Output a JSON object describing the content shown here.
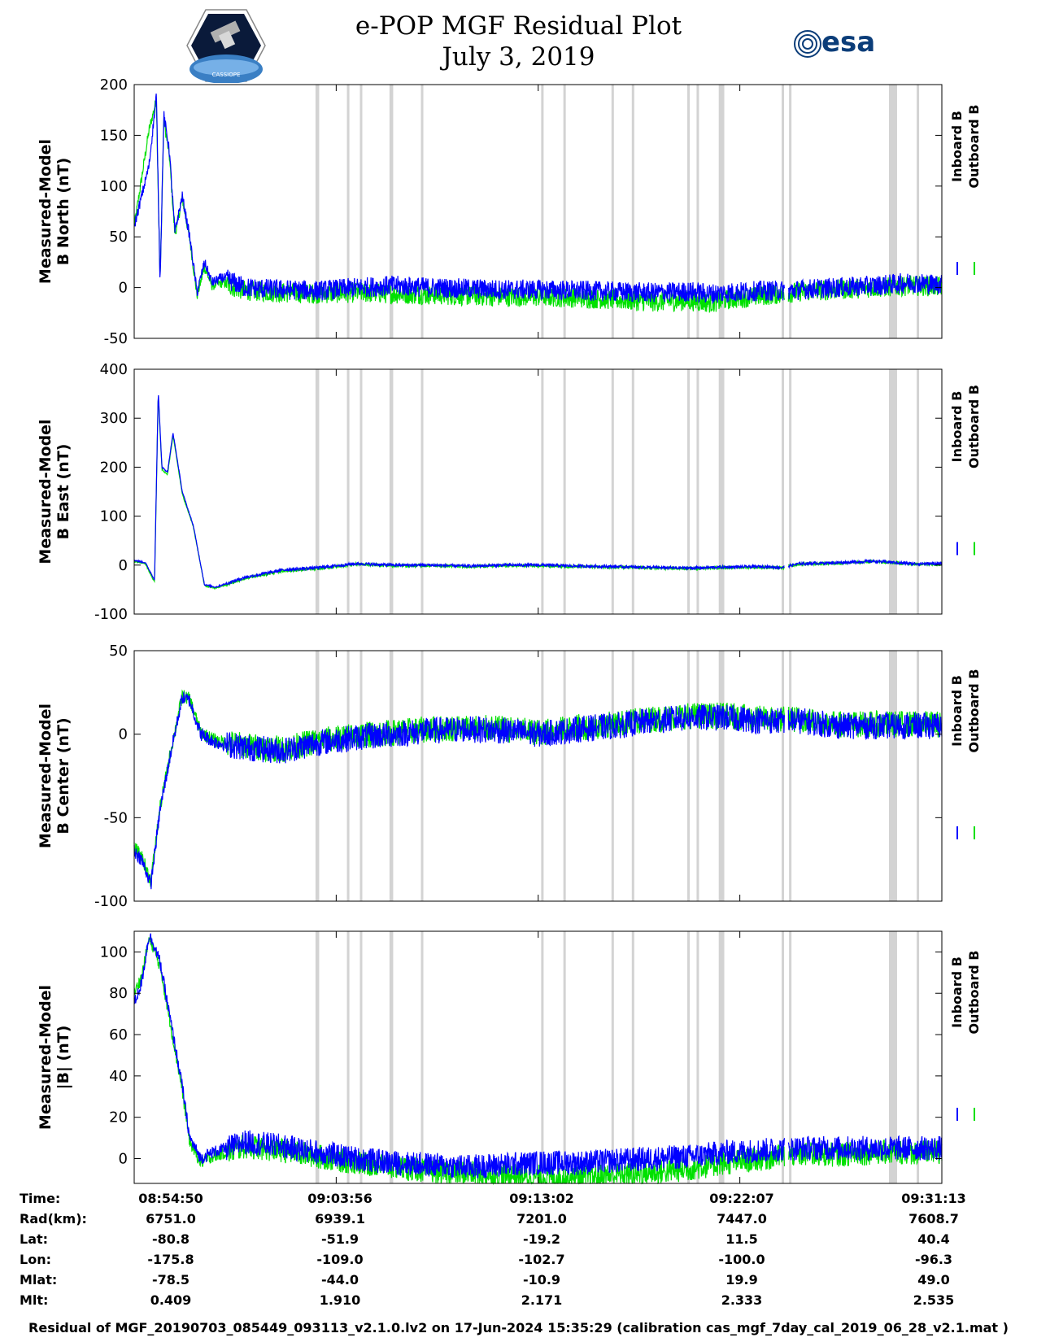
{
  "header": {
    "title_line1": "e-POP MGF Residual Plot",
    "title_line2": "July 3, 2019",
    "logo_left_text": "CASSIOPE",
    "logo_right_text": "esa"
  },
  "colors": {
    "inboard": "#0000ff",
    "outboard": "#00e000",
    "gap_band": "#d3d3d3"
  },
  "legend": {
    "inboard": "Inboard B",
    "outboard": "Outboard B"
  },
  "chart_data": [
    {
      "type": "line",
      "ylabel": [
        "Measured-Model",
        "B North (nT)"
      ],
      "ylim": [
        -50,
        200
      ],
      "yticks": [
        -50,
        0,
        50,
        100,
        150,
        200
      ],
      "xlim_seconds_from_start": [
        0,
        2183
      ],
      "series": [
        {
          "name": "Inboard B",
          "color": "#0000ff",
          "x": [
            0,
            40,
            60,
            70,
            80,
            95,
            110,
            130,
            150,
            170,
            190,
            210,
            240,
            270,
            300,
            400,
            500,
            600,
            700,
            800,
            900,
            1000,
            1100,
            1200,
            1300,
            1400,
            1500,
            1560,
            1600,
            1700,
            1780,
            1800,
            1840,
            1900,
            2000,
            2100,
            2183
          ],
          "y": [
            60,
            120,
            190,
            5,
            170,
            135,
            55,
            90,
            50,
            -5,
            25,
            5,
            10,
            5,
            0,
            -2,
            -3,
            0,
            2,
            0,
            -1,
            -2,
            -2,
            -3,
            -4,
            -5,
            -4,
            -6,
            -5,
            -3,
            -3,
            -2,
            -1,
            0,
            2,
            5,
            3
          ]
        },
        {
          "name": "Outboard B",
          "color": "#00e000",
          "x": [
            0,
            40,
            60,
            70,
            80,
            95,
            110,
            130,
            150,
            170,
            190,
            210,
            240,
            270,
            300,
            400,
            500,
            600,
            700,
            800,
            900,
            1000,
            1100,
            1200,
            1300,
            1400,
            1500,
            1560,
            1600,
            1700,
            1780,
            1800,
            1840,
            1900,
            2000,
            2100,
            2183
          ],
          "y": [
            60,
            155,
            185,
            5,
            165,
            130,
            52,
            88,
            48,
            -8,
            20,
            2,
            5,
            0,
            -3,
            -5,
            -6,
            -5,
            -6,
            -7,
            -8,
            -9,
            -9,
            -10,
            -12,
            -14,
            -13,
            -15,
            -12,
            -8,
            -5,
            -4,
            -3,
            -2,
            0,
            2,
            1
          ]
        }
      ],
      "noise_amplitude": 10
    },
    {
      "type": "line",
      "ylabel": [
        "Measured-Model",
        "B East (nT)"
      ],
      "ylim": [
        -100,
        400
      ],
      "yticks": [
        -100,
        0,
        100,
        200,
        300,
        400
      ],
      "xlim_seconds_from_start": [
        0,
        2183
      ],
      "series": [
        {
          "name": "Inboard B",
          "color": "#0000ff",
          "x": [
            0,
            30,
            55,
            65,
            75,
            90,
            105,
            130,
            160,
            190,
            220,
            300,
            400,
            500,
            600,
            700,
            800,
            900,
            1000,
            1100,
            1200,
            1300,
            1400,
            1500,
            1600,
            1700,
            1750,
            1780,
            1800,
            1900,
            2000,
            2100,
            2183
          ],
          "y": [
            10,
            5,
            -30,
            355,
            200,
            190,
            270,
            150,
            80,
            -40,
            -45,
            -25,
            -10,
            -5,
            3,
            0,
            0,
            -2,
            0,
            0,
            -2,
            -3,
            -5,
            -6,
            -4,
            -3,
            -5,
            0,
            3,
            5,
            8,
            3,
            3
          ]
        },
        {
          "name": "Outboard B",
          "color": "#00e000",
          "x": [
            0,
            30,
            55,
            65,
            75,
            90,
            105,
            130,
            160,
            190,
            220,
            300,
            400,
            500,
            600,
            700,
            800,
            900,
            1000,
            1100,
            1200,
            1300,
            1400,
            1500,
            1600,
            1700,
            1750,
            1780,
            1800,
            1900,
            2000,
            2100,
            2183
          ],
          "y": [
            8,
            3,
            -35,
            350,
            195,
            185,
            265,
            145,
            78,
            -42,
            -47,
            -27,
            -12,
            -7,
            2,
            -1,
            -1,
            -3,
            -1,
            -1,
            -3,
            -4,
            -6,
            -7,
            -5,
            -4,
            -6,
            -1,
            2,
            4,
            7,
            2,
            2
          ]
        }
      ],
      "noise_amplitude": 3
    },
    {
      "type": "line",
      "ylabel": [
        "Measured-Model",
        "B Center (nT)"
      ],
      "ylim": [
        -100,
        50
      ],
      "yticks": [
        -100,
        -50,
        0,
        50
      ],
      "xlim_seconds_from_start": [
        0,
        2183
      ],
      "series": [
        {
          "name": "Inboard B",
          "color": "#0000ff",
          "x": [
            0,
            20,
            45,
            70,
            100,
            130,
            150,
            180,
            220,
            300,
            400,
            500,
            600,
            700,
            800,
            900,
            1000,
            1100,
            1200,
            1300,
            1400,
            1500,
            1600,
            1700,
            1780,
            1800,
            1900,
            2000,
            2100,
            2183
          ],
          "y": [
            -70,
            -75,
            -90,
            -45,
            -10,
            22,
            20,
            0,
            -5,
            -8,
            -10,
            -5,
            -2,
            0,
            2,
            3,
            2,
            0,
            3,
            5,
            8,
            10,
            10,
            8,
            8,
            8,
            5,
            5,
            5,
            5
          ]
        },
        {
          "name": "Outboard B",
          "color": "#00e000",
          "x": [
            0,
            20,
            45,
            70,
            100,
            130,
            150,
            180,
            220,
            300,
            400,
            500,
            600,
            700,
            800,
            900,
            1000,
            1100,
            1200,
            1300,
            1400,
            1500,
            1600,
            1700,
            1780,
            1800,
            1900,
            2000,
            2100,
            2183
          ],
          "y": [
            -68,
            -73,
            -88,
            -44,
            -9,
            23,
            21,
            1,
            -4,
            -7,
            -9,
            -4,
            -1,
            1,
            3,
            4,
            3,
            1,
            4,
            6,
            9,
            11,
            11,
            9,
            9,
            9,
            6,
            6,
            6,
            6
          ]
        }
      ],
      "noise_amplitude": 8
    },
    {
      "type": "line",
      "ylabel": [
        "Measured-Model",
        "|B| (nT)"
      ],
      "ylim": [
        -12,
        110
      ],
      "yticks": [
        0,
        20,
        40,
        60,
        80,
        100
      ],
      "xlim_seconds_from_start": [
        0,
        2183
      ],
      "series": [
        {
          "name": "Inboard B",
          "color": "#0000ff",
          "x": [
            0,
            20,
            40,
            50,
            70,
            90,
            110,
            130,
            150,
            180,
            210,
            250,
            300,
            400,
            500,
            600,
            700,
            800,
            900,
            1000,
            1100,
            1200,
            1300,
            1400,
            1500,
            1600,
            1700,
            1780,
            1800,
            1900,
            2000,
            2100,
            2183
          ],
          "y": [
            75,
            85,
            108,
            105,
            95,
            75,
            55,
            35,
            10,
            0,
            3,
            5,
            8,
            6,
            3,
            0,
            -2,
            -3,
            -4,
            -3,
            -2,
            -2,
            -1,
            0,
            1,
            3,
            4,
            5,
            5,
            5,
            5,
            5,
            5
          ]
        },
        {
          "name": "Outboard B",
          "color": "#00e000",
          "x": [
            0,
            20,
            40,
            50,
            70,
            90,
            110,
            130,
            150,
            180,
            210,
            250,
            300,
            400,
            500,
            600,
            700,
            800,
            900,
            1000,
            1100,
            1200,
            1300,
            1400,
            1500,
            1600,
            1700,
            1780,
            1800,
            1900,
            2000,
            2100,
            2183
          ],
          "y": [
            80,
            88,
            106,
            103,
            93,
            73,
            53,
            33,
            8,
            -2,
            1,
            3,
            6,
            4,
            1,
            -2,
            -4,
            -6,
            -7,
            -8,
            -9,
            -9,
            -8,
            -7,
            -5,
            -2,
            0,
            2,
            2,
            2,
            3,
            3,
            3
          ]
        }
      ],
      "noise_amplitude": 6
    }
  ],
  "gap_bands_seconds": [
    [
      490,
      500
    ],
    [
      575,
      580
    ],
    [
      610,
      615
    ],
    [
      690,
      700
    ],
    [
      775,
      780
    ],
    [
      1100,
      1105
    ],
    [
      1160,
      1165
    ],
    [
      1290,
      1295
    ],
    [
      1345,
      1350
    ],
    [
      1495,
      1500
    ],
    [
      1520,
      1525
    ],
    [
      1580,
      1595
    ],
    [
      1750,
      1755
    ],
    [
      1770,
      1775
    ],
    [
      2040,
      2062
    ],
    [
      2115,
      2120
    ]
  ],
  "data_gap_seconds": [
    1758,
    1768
  ],
  "ephemeris": {
    "rows": [
      {
        "name": "Time:",
        "values": [
          "08:54:50",
          "09:03:56",
          "09:13:02",
          "09:22:07",
          "09:31:13"
        ]
      },
      {
        "name": "Rad(km):",
        "values": [
          "6751.0",
          "6939.1",
          "7201.0",
          "7447.0",
          "7608.7"
        ]
      },
      {
        "name": "Lat:",
        "values": [
          "-80.8",
          "-51.9",
          "-19.2",
          "11.5",
          "40.4"
        ]
      },
      {
        "name": "Lon:",
        "values": [
          "-175.8",
          "-109.0",
          "-102.7",
          "-100.0",
          "-96.3"
        ]
      },
      {
        "name": "Mlat:",
        "values": [
          "-78.5",
          "-44.0",
          "-10.9",
          "19.9",
          "49.0"
        ]
      },
      {
        "name": "Mlt:",
        "values": [
          "0.409",
          "1.910",
          "2.171",
          "2.333",
          "2.535"
        ]
      }
    ]
  },
  "footer": "Residual of MGF_20190703_085449_093113_v2.1.0.lv2 on 17-Jun-2024 15:35:29 (calibration cas_mgf_7day_cal_2019_06_28_v2.1.mat )"
}
